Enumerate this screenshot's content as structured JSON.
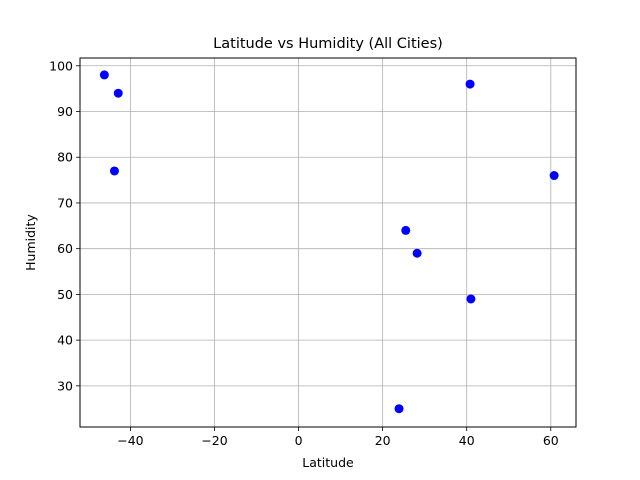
{
  "chart_data": {
    "type": "scatter",
    "title": "Latitude vs Humidity (All Cities)",
    "xlabel": "Latitude",
    "ylabel": "Humidity",
    "xlim": [
      -52,
      66
    ],
    "ylim": [
      21,
      101.7
    ],
    "xticks": [
      -40,
      -20,
      0,
      20,
      40,
      60
    ],
    "yticks": [
      30,
      40,
      50,
      60,
      70,
      80,
      90,
      100
    ],
    "grid": true,
    "marker_color": "#0000ff",
    "points": [
      {
        "x": -46.2,
        "y": 98
      },
      {
        "x": -42.9,
        "y": 94
      },
      {
        "x": -43.8,
        "y": 77
      },
      {
        "x": 40.8,
        "y": 96
      },
      {
        "x": 60.8,
        "y": 76
      },
      {
        "x": 25.5,
        "y": 64
      },
      {
        "x": 28.2,
        "y": 59
      },
      {
        "x": 41.0,
        "y": 49
      },
      {
        "x": 23.9,
        "y": 25
      }
    ]
  }
}
